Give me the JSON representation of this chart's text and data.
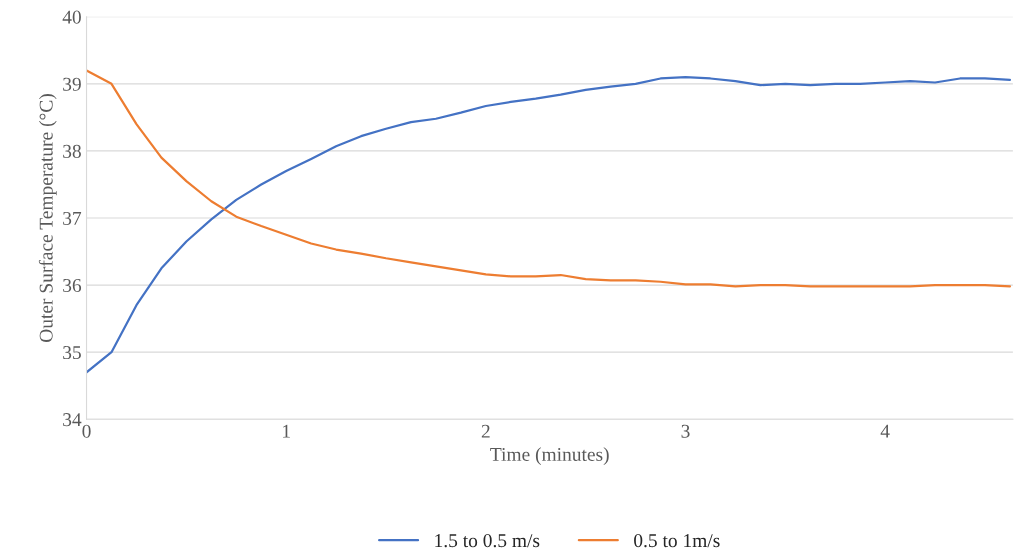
{
  "chart_data": {
    "type": "line",
    "xlabel": "Time (minutes)",
    "ylabel": "Outer Surface Temperature (°C)",
    "x": [
      0,
      0.125,
      0.25,
      0.375,
      0.5,
      0.625,
      0.75,
      0.875,
      1,
      1.125,
      1.25,
      1.375,
      1.5,
      1.625,
      1.75,
      1.875,
      2,
      2.125,
      2.25,
      2.375,
      2.5,
      2.625,
      2.75,
      2.875,
      3,
      3.125,
      3.25,
      3.375,
      3.5,
      3.625,
      3.75,
      3.875,
      4,
      4.125,
      4.25,
      4.375,
      4.5,
      4.625
    ],
    "series": [
      {
        "name": "1.5 to 0.5 m/s",
        "color": "#4472c4",
        "values": [
          34.7,
          35.0,
          35.7,
          36.25,
          36.65,
          36.98,
          37.27,
          37.5,
          37.7,
          37.88,
          38.07,
          38.22,
          38.33,
          38.43,
          38.48,
          38.57,
          38.67,
          38.73,
          38.78,
          38.84,
          38.91,
          38.96,
          39.0,
          39.08,
          39.1,
          39.08,
          39.04,
          38.98,
          39.0,
          38.98,
          39.0,
          39.0,
          39.02,
          39.04,
          39.02,
          39.08,
          39.08,
          39.06
        ]
      },
      {
        "name": "0.5 to 1m/s",
        "color": "#ed7d31",
        "values": [
          39.2,
          39.0,
          38.4,
          37.9,
          37.55,
          37.25,
          37.02,
          36.88,
          36.75,
          36.62,
          36.53,
          36.47,
          36.4,
          36.34,
          36.28,
          36.22,
          36.16,
          36.13,
          36.13,
          36.15,
          36.09,
          36.07,
          36.07,
          36.05,
          36.01,
          36.01,
          35.98,
          36.0,
          36.0,
          35.98,
          35.98,
          35.98,
          35.98,
          35.98,
          36.0,
          36.0,
          36.0,
          35.98
        ]
      }
    ],
    "xlim": [
      0,
      4.64
    ],
    "xticks": [
      0,
      1,
      2,
      3,
      4
    ],
    "ylim": [
      34,
      40
    ],
    "yticks": [
      34,
      35,
      36,
      37,
      38,
      39,
      40
    ],
    "grid": "y",
    "legend": "bottom"
  }
}
